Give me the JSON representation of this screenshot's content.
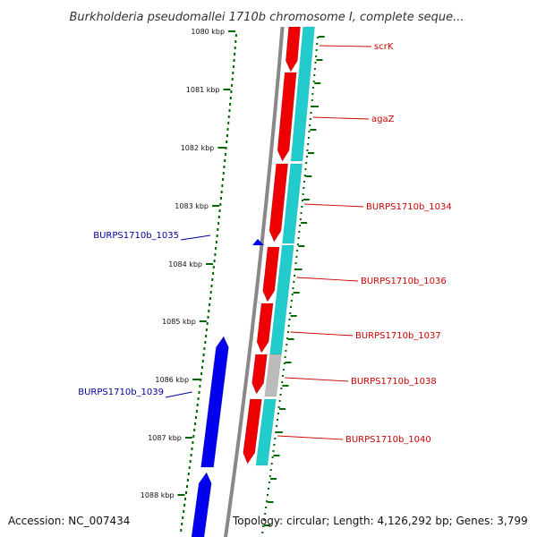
{
  "title": "Burkholderia pseudomallei 1710b chromosome I, complete seque...",
  "accession": "Accession: NC_007434",
  "summary": "Topology: circular; Length: 4,126,292 bp; Genes: 3,799",
  "colors": {
    "forward_gene": "#ee0000",
    "reverse_gene": "#0000ee",
    "forward_cds": "#22cccc",
    "pseudo_cds": "#bbbbbb",
    "backbone": "#888888",
    "ticks": "#006600",
    "forward_label": "#cc0000",
    "reverse_label": "#000099"
  },
  "scale": {
    "unit": "kbp",
    "ticks": [
      "1080 kbp",
      "1081 kbp",
      "1082 kbp",
      "1083 kbp",
      "1084 kbp",
      "1085 kbp",
      "1086 kbp",
      "1087 kbp",
      "1088 kbp"
    ]
  },
  "genes": [
    {
      "name": "scrK",
      "strand": "forward"
    },
    {
      "name": "agaZ",
      "strand": "forward"
    },
    {
      "name": "BURPS1710b_1034",
      "strand": "forward"
    },
    {
      "name": "BURPS1710b_1035",
      "strand": "reverse"
    },
    {
      "name": "BURPS1710b_1036",
      "strand": "forward"
    },
    {
      "name": "BURPS1710b_1037",
      "strand": "forward"
    },
    {
      "name": "BURPS1710b_1038",
      "strand": "forward"
    },
    {
      "name": "BURPS1710b_1039",
      "strand": "reverse"
    },
    {
      "name": "BURPS1710b_1040",
      "strand": "forward"
    }
  ]
}
